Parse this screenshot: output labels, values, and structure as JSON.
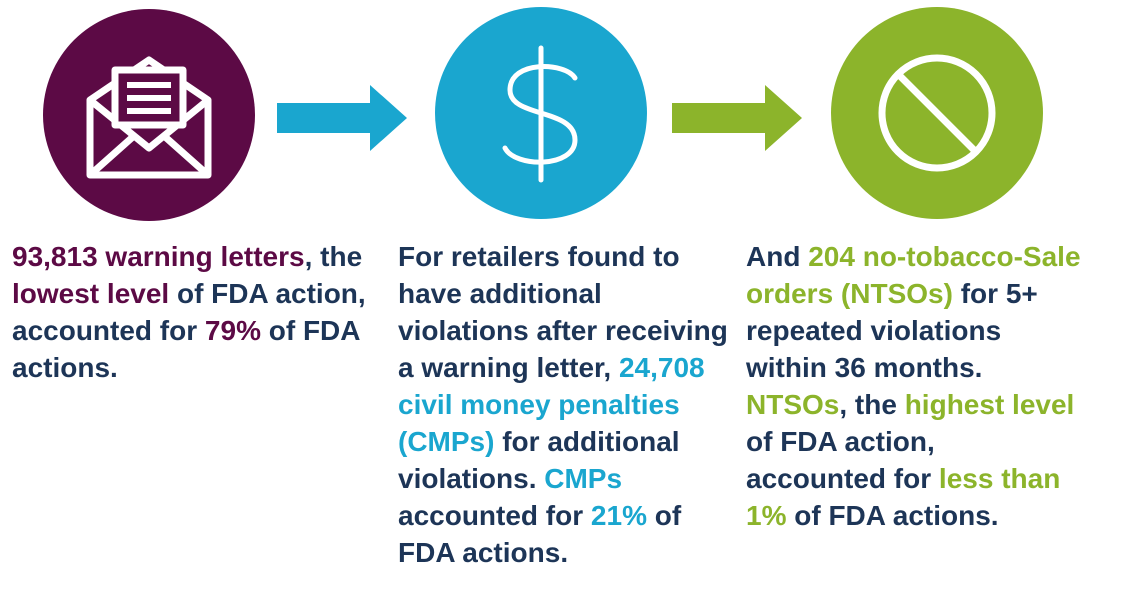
{
  "steps": [
    {
      "color": "#5c0a45",
      "runs": [
        {
          "text": "93,813 warning letters",
          "em": true
        },
        {
          "text": ", the "
        },
        {
          "text": "lowest level",
          "em": true
        },
        {
          "text": " of FDA action, accounted for "
        },
        {
          "text": "79%",
          "em": true
        },
        {
          "text": " of FDA actions."
        }
      ]
    },
    {
      "color": "#1aa6cf",
      "runs": [
        {
          "text": "For retailers found to have additional violations after receiving a warning letter, "
        },
        {
          "text": "24,708 civil money penalties (CMPs)",
          "em": true
        },
        {
          "text": " for additional violations.  "
        },
        {
          "text": "CMPs",
          "em": true
        },
        {
          "text": " accounted for "
        },
        {
          "text": "21%",
          "em": true
        },
        {
          "text": " of FDA actions."
        }
      ]
    },
    {
      "color": "#8cb42b",
      "runs": [
        {
          "text": "And "
        },
        {
          "text": "204 no-tobacco-Sale orders (NTSOs)",
          "em": true
        },
        {
          "text": " for 5+ repeated violations within 36 months.  "
        },
        {
          "text": "NTSOs",
          "em": true
        },
        {
          "text": ", the "
        },
        {
          "text": "highest level",
          "em": true
        },
        {
          "text": " of FDA action, accounted for "
        },
        {
          "text": "less than 1%",
          "em": true
        },
        {
          "text": " of FDA actions."
        }
      ]
    }
  ]
}
